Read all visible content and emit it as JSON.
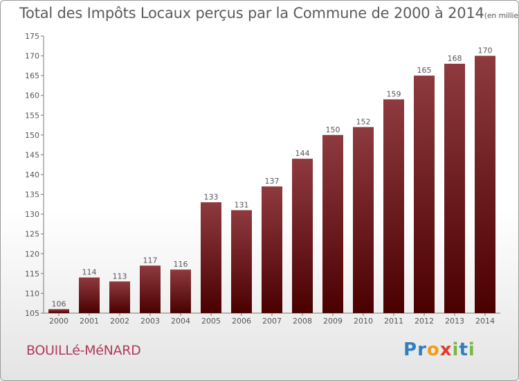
{
  "title": "Total des Impôts Locaux perçus par la Commune de 2000 à 2014",
  "title_unit": "(en milliers d'€)",
  "commune": "BOUILLé-MéNARD",
  "logo": {
    "text": "Proxiti",
    "letters": [
      "P",
      "r",
      "o",
      "x",
      "i",
      "t",
      "i"
    ],
    "colors": [
      "#2f7fc1",
      "#2f7fc1",
      "#f39c12",
      "#e33a2f",
      "#7ab648",
      "#2f7fc1",
      "#7ab648"
    ]
  },
  "colors": {
    "bar_top": "#8e3a3f",
    "bar_bottom": "#4a0000",
    "axis": "#777777"
  },
  "chart_data": {
    "type": "bar",
    "title": "Total des Impôts Locaux perçus par la Commune de 2000 à 2014",
    "xlabel": "",
    "ylabel": "",
    "unit": "en milliers d'€",
    "categories": [
      "2000",
      "2001",
      "2002",
      "2003",
      "2004",
      "2005",
      "2006",
      "2007",
      "2008",
      "2009",
      "2010",
      "2011",
      "2012",
      "2013",
      "2014"
    ],
    "values": [
      106,
      114,
      113,
      117,
      116,
      133,
      131,
      137,
      144,
      150,
      152,
      159,
      165,
      168,
      170
    ],
    "ylim": [
      105,
      175
    ],
    "yticks": [
      105,
      110,
      115,
      120,
      125,
      130,
      135,
      140,
      145,
      150,
      155,
      160,
      165,
      170,
      175
    ],
    "grid": false
  }
}
